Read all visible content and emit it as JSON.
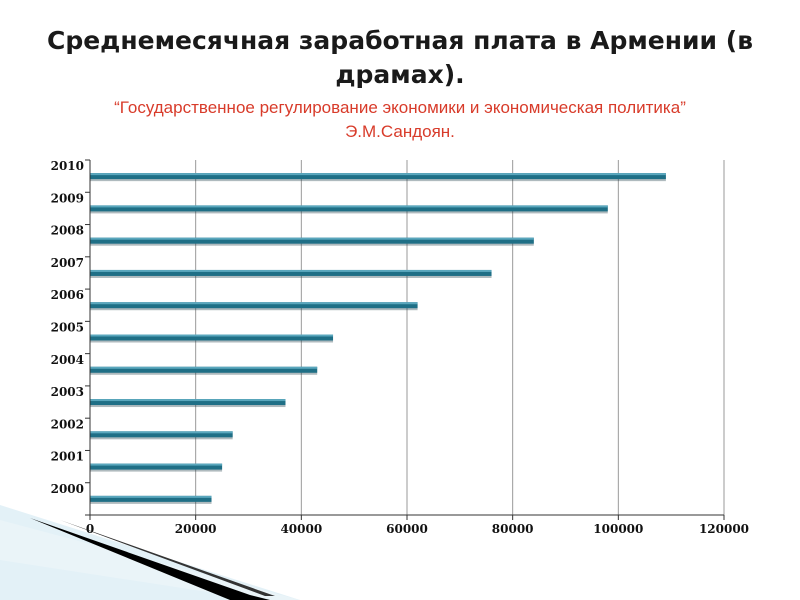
{
  "slide": {
    "title": "Среднемесячная заработная плата в Армении (в драмах).",
    "subtitle_line1": "“Государственное регулирование экономики и экономическая политика”",
    "subtitle_line2": "Э.М.Сандоян."
  },
  "colors": {
    "title": "#1a1a1a",
    "subtitle": "#d83b2a",
    "bar": "#1f6f86",
    "bar_highlight": "#5aa7bd",
    "grid": "#9a9a9a"
  },
  "chart_data": {
    "type": "bar",
    "orientation": "horizontal",
    "categories": [
      "2000",
      "2001",
      "2002",
      "2003",
      "2004",
      "2005",
      "2006",
      "2007",
      "2008",
      "2009",
      "2010"
    ],
    "values": [
      23000,
      25000,
      27000,
      37000,
      43000,
      46000,
      62000,
      76000,
      84000,
      98000,
      109000
    ],
    "xlim": [
      0,
      120000
    ],
    "x_ticks": [
      0,
      20000,
      40000,
      60000,
      80000,
      100000,
      120000
    ],
    "x_tick_labels": [
      "0",
      "20000",
      "40000",
      "60000",
      "80000",
      "100000",
      "120000"
    ],
    "grid": "vertical",
    "legend": "none"
  }
}
